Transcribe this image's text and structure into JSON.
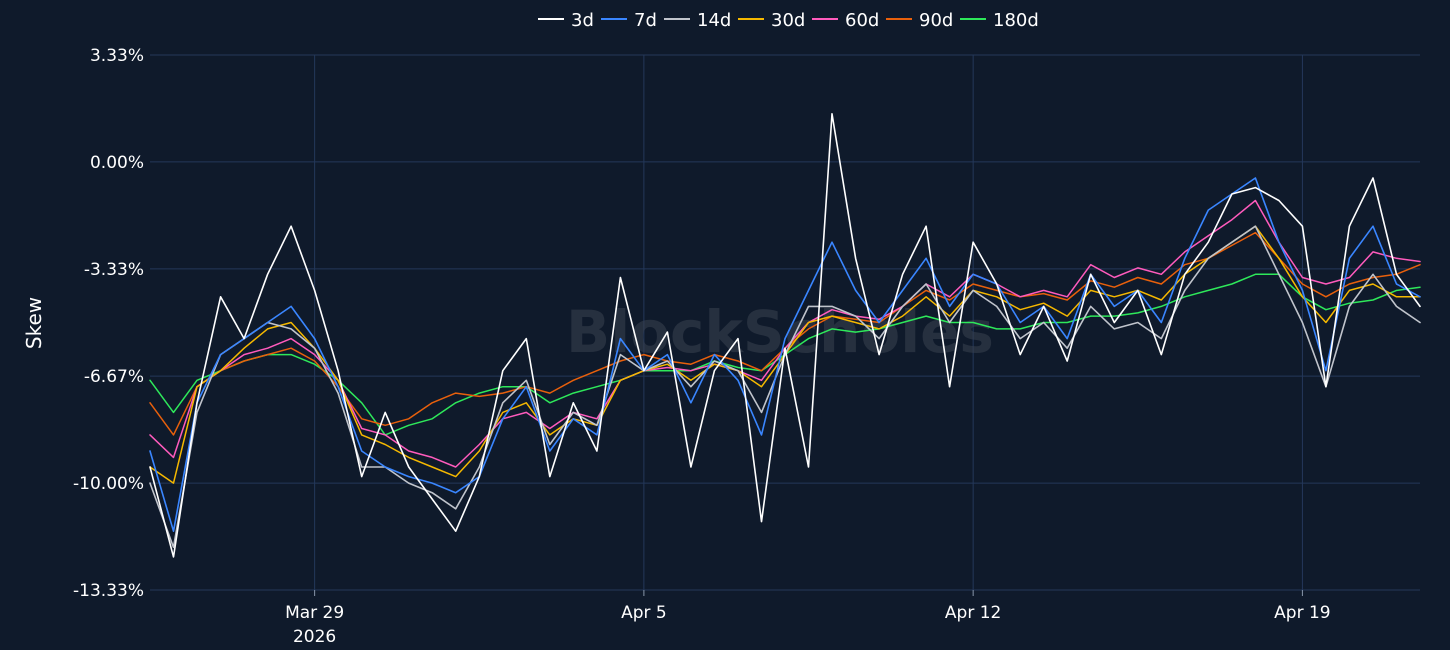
{
  "chart_data": {
    "type": "line",
    "ylabel": "Skew",
    "y_tick_labels": [
      "3.33%",
      "0.00%",
      "-3.33%",
      "-6.67%",
      "-10.00%",
      "-13.33%"
    ],
    "y_ticks": [
      3.33,
      0.0,
      -3.33,
      -6.67,
      -10.0,
      -13.33
    ],
    "ylim": [
      -13.33,
      3.33
    ],
    "x_ticks": [
      {
        "date": "2026-03-29",
        "label": "Mar 29",
        "sublabel": "2026"
      },
      {
        "date": "2026-04-05",
        "label": "Apr 5",
        "sublabel": ""
      },
      {
        "date": "2026-04-12",
        "label": "Apr 12",
        "sublabel": ""
      },
      {
        "date": "2026-04-19",
        "label": "Apr 19",
        "sublabel": ""
      }
    ],
    "xlim": [
      "2026-03-25T12:00",
      "2026-04-21T12:00"
    ],
    "grid": true,
    "legend_position": "top",
    "watermark": "BlockScholes",
    "series": [
      {
        "name": "3d",
        "color": "#ffffff",
        "width": 1.6,
        "x": [
          "2026-03-25T12:00",
          "2026-03-26T00:00",
          "2026-03-26T12:00",
          "2026-03-27T00:00",
          "2026-03-27T12:00",
          "2026-03-28T00:00",
          "2026-03-28T12:00",
          "2026-03-29T00:00",
          "2026-03-29T12:00",
          "2026-03-30T00:00",
          "2026-03-30T12:00",
          "2026-03-31T00:00",
          "2026-03-31T12:00",
          "2026-04-01T00:00",
          "2026-04-01T12:00",
          "2026-04-02T00:00",
          "2026-04-02T12:00",
          "2026-04-03T00:00",
          "2026-04-03T12:00",
          "2026-04-04T00:00",
          "2026-04-04T12:00",
          "2026-04-05T00:00",
          "2026-04-05T12:00",
          "2026-04-06T00:00",
          "2026-04-06T12:00",
          "2026-04-07T00:00",
          "2026-04-07T12:00",
          "2026-04-08T00:00",
          "2026-04-08T12:00",
          "2026-04-09T00:00",
          "2026-04-09T12:00",
          "2026-04-10T00:00",
          "2026-04-10T12:00",
          "2026-04-11T00:00",
          "2026-04-11T12:00",
          "2026-04-12T00:00",
          "2026-04-12T12:00",
          "2026-04-13T00:00",
          "2026-04-13T12:00",
          "2026-04-14T00:00",
          "2026-04-14T12:00",
          "2026-04-15T00:00",
          "2026-04-15T12:00",
          "2026-04-16T00:00",
          "2026-04-16T12:00",
          "2026-04-17T00:00",
          "2026-04-17T12:00",
          "2026-04-18T00:00",
          "2026-04-18T12:00",
          "2026-04-19T00:00",
          "2026-04-19T12:00",
          "2026-04-20T00:00",
          "2026-04-20T12:00",
          "2026-04-21T00:00",
          "2026-04-21T12:00"
        ],
        "values": [
          -9.5,
          -12.3,
          -7.5,
          -4.2,
          -5.5,
          -3.5,
          -2.0,
          -4.0,
          -6.5,
          -9.8,
          -7.8,
          -9.5,
          -10.5,
          -11.5,
          -9.8,
          -6.5,
          -5.5,
          -9.8,
          -7.5,
          -9.0,
          -3.6,
          -6.5,
          -5.3,
          -9.5,
          -6.5,
          -5.5,
          -11.2,
          -5.8,
          -9.5,
          1.5,
          -3.0,
          -6.0,
          -3.5,
          -2.0,
          -7.0,
          -2.5,
          -3.8,
          -6.0,
          -4.5,
          -6.2,
          -3.5,
          -5.0,
          -4.0,
          -6.0,
          -3.5,
          -2.5,
          -1.0,
          -0.8,
          -1.2,
          -2.0,
          -7.0,
          -2.0,
          -0.5,
          -3.5,
          -4.5
        ]
      },
      {
        "name": "7d",
        "color": "#3a86ff",
        "width": 1.6,
        "x": [
          "2026-03-25T12:00",
          "2026-03-26T00:00",
          "2026-03-26T12:00",
          "2026-03-27T00:00",
          "2026-03-27T12:00",
          "2026-03-28T00:00",
          "2026-03-28T12:00",
          "2026-03-29T00:00",
          "2026-03-29T12:00",
          "2026-03-30T00:00",
          "2026-03-30T12:00",
          "2026-03-31T00:00",
          "2026-03-31T12:00",
          "2026-04-01T00:00",
          "2026-04-01T12:00",
          "2026-04-02T00:00",
          "2026-04-02T12:00",
          "2026-04-03T00:00",
          "2026-04-03T12:00",
          "2026-04-04T00:00",
          "2026-04-04T12:00",
          "2026-04-05T00:00",
          "2026-04-05T12:00",
          "2026-04-06T00:00",
          "2026-04-06T12:00",
          "2026-04-07T00:00",
          "2026-04-07T12:00",
          "2026-04-08T00:00",
          "2026-04-08T12:00",
          "2026-04-09T00:00",
          "2026-04-09T12:00",
          "2026-04-10T00:00",
          "2026-04-10T12:00",
          "2026-04-11T00:00",
          "2026-04-11T12:00",
          "2026-04-12T00:00",
          "2026-04-12T12:00",
          "2026-04-13T00:00",
          "2026-04-13T12:00",
          "2026-04-14T00:00",
          "2026-04-14T12:00",
          "2026-04-15T00:00",
          "2026-04-15T12:00",
          "2026-04-16T00:00",
          "2026-04-16T12:00",
          "2026-04-17T00:00",
          "2026-04-17T12:00",
          "2026-04-18T00:00",
          "2026-04-18T12:00",
          "2026-04-19T00:00",
          "2026-04-19T12:00",
          "2026-04-20T00:00",
          "2026-04-20T12:00",
          "2026-04-21T00:00",
          "2026-04-21T12:00"
        ],
        "values": [
          -9.0,
          -11.5,
          -7.5,
          -6.0,
          -5.5,
          -5.0,
          -4.5,
          -5.5,
          -7.0,
          -9.0,
          -9.5,
          -9.8,
          -10.0,
          -10.3,
          -9.8,
          -8.0,
          -7.0,
          -9.0,
          -8.0,
          -8.5,
          -5.5,
          -6.5,
          -6.0,
          -7.5,
          -6.0,
          -6.8,
          -8.5,
          -5.5,
          -4.0,
          -2.5,
          -4.0,
          -5.0,
          -4.0,
          -3.0,
          -4.5,
          -3.5,
          -3.8,
          -5.0,
          -4.5,
          -5.5,
          -3.5,
          -4.5,
          -4.0,
          -5.0,
          -3.0,
          -1.5,
          -1.0,
          -0.5,
          -2.5,
          -4.0,
          -6.5,
          -3.0,
          -2.0,
          -3.8,
          -4.2
        ]
      },
      {
        "name": "14d",
        "color": "#c0c4cc",
        "width": 1.6,
        "x": [
          "2026-03-25T12:00",
          "2026-03-26T00:00",
          "2026-03-26T12:00",
          "2026-03-27T00:00",
          "2026-03-27T12:00",
          "2026-03-28T00:00",
          "2026-03-28T12:00",
          "2026-03-29T00:00",
          "2026-03-29T12:00",
          "2026-03-30T00:00",
          "2026-03-30T12:00",
          "2026-03-31T00:00",
          "2026-03-31T12:00",
          "2026-04-01T00:00",
          "2026-04-01T12:00",
          "2026-04-02T00:00",
          "2026-04-02T12:00",
          "2026-04-03T00:00",
          "2026-04-03T12:00",
          "2026-04-04T00:00",
          "2026-04-04T12:00",
          "2026-04-05T00:00",
          "2026-04-05T12:00",
          "2026-04-06T00:00",
          "2026-04-06T12:00",
          "2026-04-07T00:00",
          "2026-04-07T12:00",
          "2026-04-08T00:00",
          "2026-04-08T12:00",
          "2026-04-09T00:00",
          "2026-04-09T12:00",
          "2026-04-10T00:00",
          "2026-04-10T12:00",
          "2026-04-11T00:00",
          "2026-04-11T12:00",
          "2026-04-12T00:00",
          "2026-04-12T12:00",
          "2026-04-13T00:00",
          "2026-04-13T12:00",
          "2026-04-14T00:00",
          "2026-04-14T12:00",
          "2026-04-15T00:00",
          "2026-04-15T12:00",
          "2026-04-16T00:00",
          "2026-04-16T12:00",
          "2026-04-17T00:00",
          "2026-04-17T12:00",
          "2026-04-18T00:00",
          "2026-04-18T12:00",
          "2026-04-19T00:00",
          "2026-04-19T12:00",
          "2026-04-20T00:00",
          "2026-04-20T12:00",
          "2026-04-21T00:00",
          "2026-04-21T12:00"
        ],
        "values": [
          -10.0,
          -12.0,
          -7.8,
          -6.0,
          -5.5,
          -5.0,
          -5.2,
          -5.8,
          -7.2,
          -9.5,
          -9.5,
          -10.0,
          -10.3,
          -10.8,
          -9.5,
          -7.5,
          -6.8,
          -8.8,
          -7.8,
          -8.2,
          -6.0,
          -6.5,
          -6.2,
          -7.0,
          -6.2,
          -6.5,
          -7.8,
          -6.0,
          -4.5,
          -4.5,
          -4.8,
          -5.5,
          -4.5,
          -3.8,
          -5.0,
          -4.0,
          -4.5,
          -5.5,
          -5.0,
          -5.8,
          -4.5,
          -5.2,
          -5.0,
          -5.5,
          -4.0,
          -3.0,
          -2.5,
          -2.0,
          -3.5,
          -5.0,
          -7.0,
          -4.5,
          -3.5,
          -4.5,
          -5.0
        ]
      },
      {
        "name": "30d",
        "color": "#f5b800",
        "width": 1.5,
        "x": [
          "2026-03-25T12:00",
          "2026-03-26T00:00",
          "2026-03-26T12:00",
          "2026-03-27T00:00",
          "2026-03-27T12:00",
          "2026-03-28T00:00",
          "2026-03-28T12:00",
          "2026-03-29T00:00",
          "2026-03-29T12:00",
          "2026-03-30T00:00",
          "2026-03-30T12:00",
          "2026-03-31T00:00",
          "2026-03-31T12:00",
          "2026-04-01T00:00",
          "2026-04-01T12:00",
          "2026-04-02T00:00",
          "2026-04-02T12:00",
          "2026-04-03T00:00",
          "2026-04-03T12:00",
          "2026-04-04T00:00",
          "2026-04-04T12:00",
          "2026-04-05T00:00",
          "2026-04-05T12:00",
          "2026-04-06T00:00",
          "2026-04-06T12:00",
          "2026-04-07T00:00",
          "2026-04-07T12:00",
          "2026-04-08T00:00",
          "2026-04-08T12:00",
          "2026-04-09T00:00",
          "2026-04-09T12:00",
          "2026-04-10T00:00",
          "2026-04-10T12:00",
          "2026-04-11T00:00",
          "2026-04-11T12:00",
          "2026-04-12T00:00",
          "2026-04-12T12:00",
          "2026-04-13T00:00",
          "2026-04-13T12:00",
          "2026-04-14T00:00",
          "2026-04-14T12:00",
          "2026-04-15T00:00",
          "2026-04-15T12:00",
          "2026-04-16T00:00",
          "2026-04-16T12:00",
          "2026-04-17T00:00",
          "2026-04-17T12:00",
          "2026-04-18T00:00",
          "2026-04-18T12:00",
          "2026-04-19T00:00",
          "2026-04-19T12:00",
          "2026-04-20T00:00",
          "2026-04-20T12:00",
          "2026-04-21T00:00",
          "2026-04-21T12:00"
        ],
        "values": [
          -9.5,
          -10.0,
          -7.0,
          -6.5,
          -5.8,
          -5.2,
          -5.0,
          -5.8,
          -6.8,
          -8.5,
          -8.8,
          -9.2,
          -9.5,
          -9.8,
          -9.0,
          -7.8,
          -7.5,
          -8.5,
          -8.0,
          -8.2,
          -6.8,
          -6.5,
          -6.3,
          -6.8,
          -6.3,
          -6.5,
          -7.0,
          -6.0,
          -5.0,
          -4.8,
          -5.0,
          -5.2,
          -4.8,
          -4.2,
          -4.8,
          -4.0,
          -4.2,
          -4.6,
          -4.4,
          -4.8,
          -4.0,
          -4.2,
          -4.0,
          -4.3,
          -3.5,
          -3.0,
          -2.5,
          -2.0,
          -3.0,
          -4.2,
          -5.0,
          -4.0,
          -3.8,
          -4.2,
          -4.2
        ]
      },
      {
        "name": "60d",
        "color": "#ff5bbd",
        "width": 1.5,
        "x": [
          "2026-03-25T12:00",
          "2026-03-26T00:00",
          "2026-03-26T12:00",
          "2026-03-27T00:00",
          "2026-03-27T12:00",
          "2026-03-28T00:00",
          "2026-03-28T12:00",
          "2026-03-29T00:00",
          "2026-03-29T12:00",
          "2026-03-30T00:00",
          "2026-03-30T12:00",
          "2026-03-31T00:00",
          "2026-03-31T12:00",
          "2026-04-01T00:00",
          "2026-04-01T12:00",
          "2026-04-02T00:00",
          "2026-04-02T12:00",
          "2026-04-03T00:00",
          "2026-04-03T12:00",
          "2026-04-04T00:00",
          "2026-04-04T12:00",
          "2026-04-05T00:00",
          "2026-04-05T12:00",
          "2026-04-06T00:00",
          "2026-04-06T12:00",
          "2026-04-07T00:00",
          "2026-04-07T12:00",
          "2026-04-08T00:00",
          "2026-04-08T12:00",
          "2026-04-09T00:00",
          "2026-04-09T12:00",
          "2026-04-10T00:00",
          "2026-04-10T12:00",
          "2026-04-11T00:00",
          "2026-04-11T12:00",
          "2026-04-12T00:00",
          "2026-04-12T12:00",
          "2026-04-13T00:00",
          "2026-04-13T12:00",
          "2026-04-14T00:00",
          "2026-04-14T12:00",
          "2026-04-15T00:00",
          "2026-04-15T12:00",
          "2026-04-16T00:00",
          "2026-04-16T12:00",
          "2026-04-17T00:00",
          "2026-04-17T12:00",
          "2026-04-18T00:00",
          "2026-04-18T12:00",
          "2026-04-19T00:00",
          "2026-04-19T12:00",
          "2026-04-20T00:00",
          "2026-04-20T12:00",
          "2026-04-21T00:00",
          "2026-04-21T12:00"
        ],
        "values": [
          -8.5,
          -9.2,
          -7.0,
          -6.5,
          -6.0,
          -5.8,
          -5.5,
          -6.0,
          -6.8,
          -8.3,
          -8.5,
          -9.0,
          -9.2,
          -9.5,
          -8.8,
          -8.0,
          -7.8,
          -8.3,
          -7.8,
          -8.0,
          -6.8,
          -6.5,
          -6.4,
          -6.5,
          -6.3,
          -6.5,
          -6.8,
          -5.8,
          -5.0,
          -4.6,
          -4.8,
          -4.9,
          -4.5,
          -3.8,
          -4.2,
          -3.5,
          -3.8,
          -4.2,
          -4.0,
          -4.2,
          -3.2,
          -3.6,
          -3.3,
          -3.5,
          -2.8,
          -2.3,
          -1.8,
          -1.2,
          -2.5,
          -3.6,
          -3.8,
          -3.6,
          -2.8,
          -3.0,
          -3.1
        ]
      },
      {
        "name": "90d",
        "color": "#e8600c",
        "width": 1.5,
        "x": [
          "2026-03-25T12:00",
          "2026-03-26T00:00",
          "2026-03-26T12:00",
          "2026-03-27T00:00",
          "2026-03-27T12:00",
          "2026-03-28T00:00",
          "2026-03-28T12:00",
          "2026-03-29T00:00",
          "2026-03-29T12:00",
          "2026-03-30T00:00",
          "2026-03-30T12:00",
          "2026-03-31T00:00",
          "2026-03-31T12:00",
          "2026-04-01T00:00",
          "2026-04-01T12:00",
          "2026-04-02T00:00",
          "2026-04-02T12:00",
          "2026-04-03T00:00",
          "2026-04-03T12:00",
          "2026-04-04T00:00",
          "2026-04-04T12:00",
          "2026-04-05T00:00",
          "2026-04-05T12:00",
          "2026-04-06T00:00",
          "2026-04-06T12:00",
          "2026-04-07T00:00",
          "2026-04-07T12:00",
          "2026-04-08T00:00",
          "2026-04-08T12:00",
          "2026-04-09T00:00",
          "2026-04-09T12:00",
          "2026-04-10T00:00",
          "2026-04-10T12:00",
          "2026-04-11T00:00",
          "2026-04-11T12:00",
          "2026-04-12T00:00",
          "2026-04-12T12:00",
          "2026-04-13T00:00",
          "2026-04-13T12:00",
          "2026-04-14T00:00",
          "2026-04-14T12:00",
          "2026-04-15T00:00",
          "2026-04-15T12:00",
          "2026-04-16T00:00",
          "2026-04-16T12:00",
          "2026-04-17T00:00",
          "2026-04-17T12:00",
          "2026-04-18T00:00",
          "2026-04-18T12:00",
          "2026-04-19T00:00",
          "2026-04-19T12:00",
          "2026-04-20T00:00",
          "2026-04-20T12:00",
          "2026-04-21T00:00",
          "2026-04-21T12:00"
        ],
        "values": [
          -7.5,
          -8.5,
          -7.0,
          -6.5,
          -6.2,
          -6.0,
          -5.8,
          -6.2,
          -7.0,
          -8.0,
          -8.2,
          -8.0,
          -7.5,
          -7.2,
          -7.3,
          -7.2,
          -7.0,
          -7.2,
          -6.8,
          -6.5,
          -6.2,
          -6.0,
          -6.2,
          -6.3,
          -6.0,
          -6.2,
          -6.5,
          -5.8,
          -5.2,
          -4.8,
          -4.9,
          -5.0,
          -4.5,
          -4.0,
          -4.3,
          -3.8,
          -4.0,
          -4.2,
          -4.1,
          -4.3,
          -3.7,
          -3.9,
          -3.6,
          -3.8,
          -3.2,
          -3.0,
          -2.6,
          -2.2,
          -3.0,
          -3.8,
          -4.2,
          -3.8,
          -3.6,
          -3.5,
          -3.2
        ]
      },
      {
        "name": "180d",
        "color": "#2ee85a",
        "width": 1.5,
        "x": [
          "2026-03-25T12:00",
          "2026-03-26T00:00",
          "2026-03-26T12:00",
          "2026-03-27T00:00",
          "2026-03-27T12:00",
          "2026-03-28T00:00",
          "2026-03-28T12:00",
          "2026-03-29T00:00",
          "2026-03-29T12:00",
          "2026-03-30T00:00",
          "2026-03-30T12:00",
          "2026-03-31T00:00",
          "2026-03-31T12:00",
          "2026-04-01T00:00",
          "2026-04-01T12:00",
          "2026-04-02T00:00",
          "2026-04-02T12:00",
          "2026-04-03T00:00",
          "2026-04-03T12:00",
          "2026-04-04T00:00",
          "2026-04-04T12:00",
          "2026-04-05T00:00",
          "2026-04-05T12:00",
          "2026-04-06T00:00",
          "2026-04-06T12:00",
          "2026-04-07T00:00",
          "2026-04-07T12:00",
          "2026-04-08T00:00",
          "2026-04-08T12:00",
          "2026-04-09T00:00",
          "2026-04-09T12:00",
          "2026-04-10T00:00",
          "2026-04-10T12:00",
          "2026-04-11T00:00",
          "2026-04-11T12:00",
          "2026-04-12T00:00",
          "2026-04-12T12:00",
          "2026-04-13T00:00",
          "2026-04-13T12:00",
          "2026-04-14T00:00",
          "2026-04-14T12:00",
          "2026-04-15T00:00",
          "2026-04-15T12:00",
          "2026-04-16T00:00",
          "2026-04-16T12:00",
          "2026-04-17T00:00",
          "2026-04-17T12:00",
          "2026-04-18T00:00",
          "2026-04-18T12:00",
          "2026-04-19T00:00",
          "2026-04-19T12:00",
          "2026-04-20T00:00",
          "2026-04-20T12:00",
          "2026-04-21T00:00",
          "2026-04-21T12:00"
        ],
        "values": [
          -6.8,
          -7.8,
          -6.8,
          -6.5,
          -6.2,
          -6.0,
          -6.0,
          -6.3,
          -6.8,
          -7.5,
          -8.5,
          -8.2,
          -8.0,
          -7.5,
          -7.2,
          -7.0,
          -7.0,
          -7.5,
          -7.2,
          -7.0,
          -6.8,
          -6.5,
          -6.5,
          -6.5,
          -6.2,
          -6.4,
          -6.5,
          -6.0,
          -5.5,
          -5.2,
          -5.3,
          -5.2,
          -5.0,
          -4.8,
          -5.0,
          -5.0,
          -5.2,
          -5.2,
          -5.0,
          -5.0,
          -4.8,
          -4.8,
          -4.7,
          -4.5,
          -4.2,
          -4.0,
          -3.8,
          -3.5,
          -3.5,
          -4.2,
          -4.6,
          -4.4,
          -4.3,
          -4.0,
          -3.9
        ]
      }
    ]
  }
}
